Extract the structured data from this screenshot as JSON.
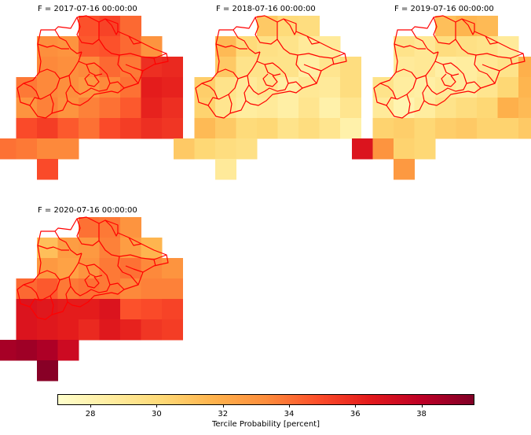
{
  "panels": [
    {
      "title": "F = 2017-07-16 00:00:00",
      "grid": {
        "row_starts": [
          3,
          1,
          1,
          0,
          0,
          0,
          -1,
          1
        ],
        "values": [
          [
            34.8,
            35.2,
            34.2
          ],
          [
            33.2,
            33.0,
            34.6,
            34.8,
            34.2,
            33.0
          ],
          [
            33.4,
            33.2,
            33.4,
            34.2,
            33.8,
            35.8,
            36.0
          ],
          [
            33.8,
            33.4,
            33.2,
            32.8,
            33.4,
            34.0,
            36.4,
            36.2
          ],
          [
            33.0,
            33.6,
            33.0,
            33.6,
            34.0,
            34.6,
            36.2,
            35.8
          ],
          [
            35.0,
            35.4,
            34.6,
            34.0,
            35.0,
            35.4,
            35.8,
            35.6
          ],
          [
            34.0,
            33.8,
            33.4,
            33.4
          ],
          [
            35.0
          ]
        ]
      }
    },
    {
      "title": "F = 2018-07-16 00:00:00",
      "grid": {
        "row_starts": [
          3,
          1,
          1,
          0,
          0,
          0,
          -1,
          1
        ],
        "values": [
          [
            30.8,
            30.0,
            29.8
          ],
          [
            31.4,
            30.0,
            29.6,
            29.4,
            28.8,
            28.8
          ],
          [
            30.8,
            29.4,
            29.4,
            29.4,
            28.4,
            29.2,
            29.8
          ],
          [
            30.6,
            29.4,
            28.8,
            29.2,
            28.4,
            29.0,
            28.8,
            29.8
          ],
          [
            30.4,
            29.2,
            28.6,
            28.8,
            28.4,
            29.2,
            28.2,
            29.2
          ],
          [
            31.4,
            30.8,
            30.0,
            30.2,
            29.4,
            29.8,
            29.2,
            28.2
          ],
          [
            30.8,
            30.2,
            29.8,
            29.6
          ],
          [
            28.8
          ]
        ]
      }
    },
    {
      "title": "F = 2019-07-16 00:00:00",
      "grid": {
        "row_starts": [
          3,
          1,
          1,
          0,
          0,
          0,
          -1,
          1
        ],
        "values": [
          [
            31.2,
            31.6,
            31.4
          ],
          [
            29.4,
            29.0,
            29.8,
            29.6,
            29.4,
            28.8
          ],
          [
            28.8,
            29.0,
            28.4,
            28.6,
            29.0,
            29.4,
            31.8
          ],
          [
            29.4,
            28.6,
            28.4,
            28.8,
            28.6,
            29.2,
            30.2,
            31.6
          ],
          [
            28.8,
            28.0,
            28.6,
            29.4,
            29.8,
            30.2,
            31.8,
            31.4
          ],
          [
            30.4,
            30.6,
            30.2,
            30.6,
            30.8,
            30.4,
            30.4,
            30.8
          ],
          [
            36.8,
            33.0,
            30.4,
            30.2
          ],
          [
            32.8
          ]
        ]
      }
    },
    {
      "title": "F = 2020-07-16 00:00:00",
      "grid": {
        "row_starts": [
          3,
          1,
          1,
          0,
          0,
          0,
          -1,
          1
        ],
        "values": [
          [
            34.0,
            33.8,
            33.0
          ],
          [
            31.2,
            32.6,
            32.8,
            33.6,
            32.6,
            31.6
          ],
          [
            32.8,
            32.4,
            33.0,
            33.8,
            34.0,
            33.4,
            33.0
          ],
          [
            34.2,
            34.6,
            33.8,
            34.0,
            33.8,
            33.4,
            33.6,
            33.6
          ],
          [
            36.8,
            36.6,
            36.4,
            36.4,
            36.8,
            34.8,
            35.0,
            35.2
          ],
          [
            36.8,
            36.6,
            36.4,
            36.0,
            36.6,
            36.2,
            35.6,
            35.4
          ],
          [
            38.6,
            38.8,
            38.4,
            37.4
          ],
          [
            39.4
          ]
        ]
      }
    }
  ],
  "colorbar": {
    "label": "Tercile Probability [percent]",
    "vmin": 27.0,
    "vmax": 39.6,
    "ticks": [
      "28",
      "30",
      "32",
      "34",
      "36",
      "38"
    ],
    "colormap_stops": [
      "#ffffcc",
      "#ffeda0",
      "#fed976",
      "#feb24c",
      "#fd8d3c",
      "#fc4e2a",
      "#e31a1c",
      "#bd0026",
      "#800026"
    ]
  },
  "border_color": "#ff0000"
}
